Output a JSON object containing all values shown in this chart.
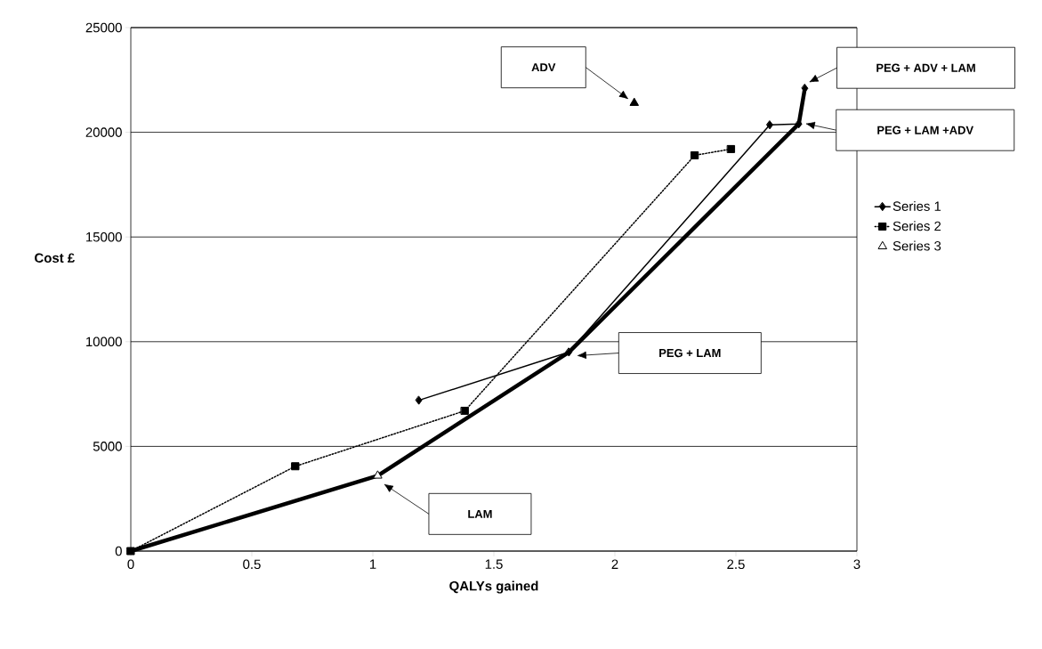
{
  "chart_data": {
    "type": "line",
    "xlabel": "QALYs gained",
    "ylabel": "Cost £",
    "xlim": [
      0,
      3
    ],
    "ylim": [
      0,
      25000
    ],
    "xticks": [
      0,
      0.5,
      1,
      1.5,
      2,
      2.5,
      3
    ],
    "yticks": [
      0,
      5000,
      10000,
      15000,
      20000,
      25000
    ],
    "grid": "y",
    "legend": "right",
    "series": [
      {
        "name": "Series 1",
        "color": "#000000",
        "marker": "diamond",
        "line_style": "solid",
        "x": [
          1.19,
          1.81,
          2.64,
          2.76,
          2.785
        ],
        "values": [
          7200,
          9500,
          20350,
          20400,
          22100
        ]
      },
      {
        "name": "Series 2",
        "color": "#000000",
        "marker": "square",
        "line_style": "dotted",
        "x": [
          0,
          0.68,
          1.38,
          2.33,
          2.48
        ],
        "values": [
          0,
          4050,
          6700,
          18900,
          19200
        ]
      },
      {
        "name": "Series 3",
        "type": "scatter",
        "color": "#ffffff",
        "marker": "triangle",
        "x": [
          1.02
        ],
        "values": [
          3600
        ]
      },
      {
        "color": "#000000",
        "marker": "none",
        "line_style": "solid",
        "x": [
          0,
          1.02,
          1.81,
          2.76,
          2.785
        ],
        "values": [
          0,
          3600,
          9500,
          20400,
          22100
        ]
      },
      {
        "type": "scatter",
        "color": "#000000",
        "marker": "triangle",
        "x": [
          2.08
        ],
        "values": [
          21400
        ]
      }
    ],
    "annotations": [
      "ADV",
      "PEG + ADV + LAM",
      "PEG + LAM +ADV",
      "PEG + LAM",
      "LAM"
    ]
  }
}
